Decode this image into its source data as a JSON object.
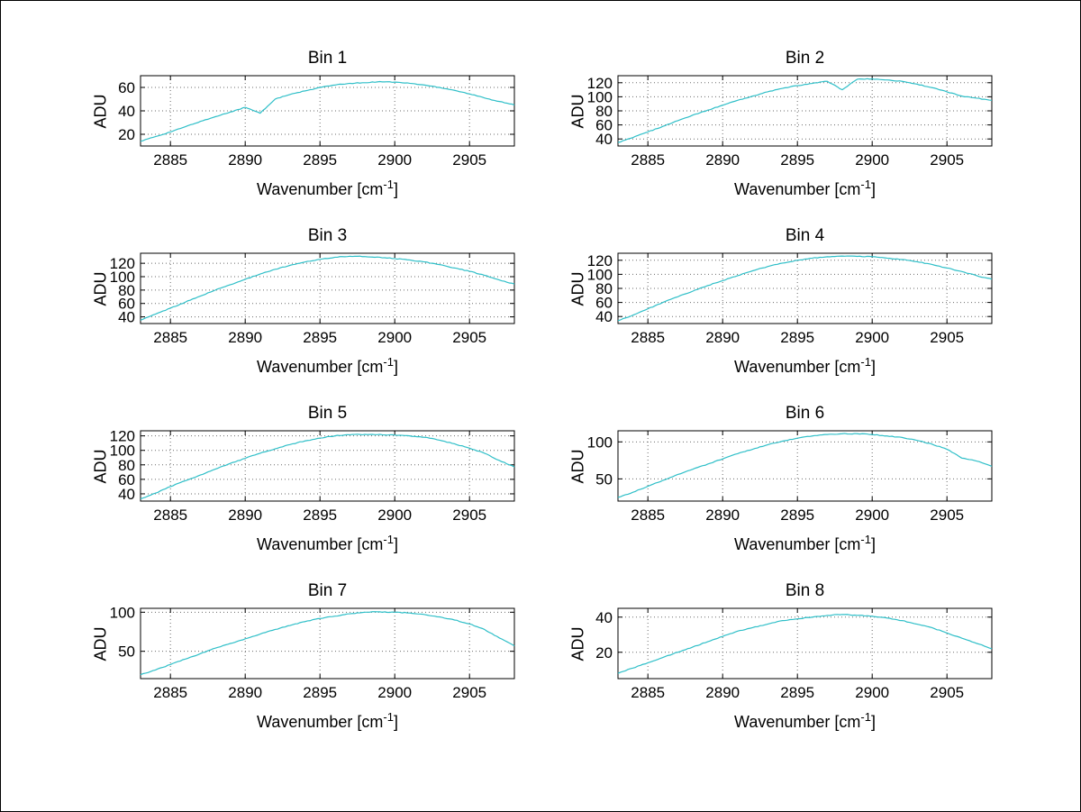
{
  "style": {
    "background": "#ffffff",
    "axis_color": "#000000",
    "grid_color": "#6b6b6b",
    "line_color": "#2fbfc8"
  },
  "labels": {
    "ylabel": "ADU",
    "xlabel_base": "Wavenumber [cm",
    "xlabel_sup": "-1",
    "xlabel_close": "]"
  },
  "chart_data": [
    {
      "type": "line",
      "title": "Bin 1",
      "xlabel": "Wavenumber [cm^-1]",
      "ylabel": "ADU",
      "xlim": [
        2883,
        2908
      ],
      "ylim": [
        10,
        70
      ],
      "xticks": [
        2885,
        2890,
        2895,
        2900,
        2905
      ],
      "yticks": [
        20,
        40,
        60
      ],
      "grid": true,
      "x": [
        2883,
        2884,
        2885,
        2886,
        2887,
        2888,
        2889,
        2890,
        2891,
        2892,
        2893,
        2894,
        2895,
        2896,
        2897,
        2898,
        2899,
        2900,
        2901,
        2902,
        2903,
        2904,
        2905,
        2906,
        2907,
        2908
      ],
      "y": [
        14,
        18,
        22,
        26.5,
        31,
        35,
        39,
        43,
        38,
        50,
        54,
        57,
        60,
        62,
        63.5,
        64,
        65,
        64.5,
        63.5,
        62,
        60,
        57.5,
        54.5,
        51,
        48,
        45
      ]
    },
    {
      "type": "line",
      "title": "Bin 2",
      "xlabel": "Wavenumber [cm^-1]",
      "ylabel": "ADU",
      "xlim": [
        2883,
        2908
      ],
      "ylim": [
        30,
        130
      ],
      "xticks": [
        2885,
        2890,
        2895,
        2900,
        2905
      ],
      "yticks": [
        40,
        60,
        80,
        100,
        120
      ],
      "grid": true,
      "x": [
        2883,
        2884,
        2885,
        2886,
        2887,
        2888,
        2889,
        2890,
        2891,
        2892,
        2893,
        2894,
        2895,
        2896,
        2897,
        2898,
        2899,
        2900,
        2901,
        2902,
        2903,
        2904,
        2905,
        2906,
        2907,
        2908
      ],
      "y": [
        35,
        42,
        50,
        58,
        66,
        74,
        81,
        88,
        95,
        101,
        107,
        112,
        116,
        119,
        122,
        110,
        125,
        125.5,
        124,
        122,
        118,
        113,
        107,
        101,
        98,
        95
      ]
    },
    {
      "type": "line",
      "title": "Bin 3",
      "xlabel": "Wavenumber [cm^-1]",
      "ylabel": "ADU",
      "xlim": [
        2883,
        2908
      ],
      "ylim": [
        30,
        135
      ],
      "xticks": [
        2885,
        2890,
        2895,
        2900,
        2905
      ],
      "yticks": [
        40,
        60,
        80,
        100,
        120
      ],
      "grid": true,
      "x": [
        2883,
        2884,
        2885,
        2886,
        2887,
        2888,
        2889,
        2890,
        2891,
        2892,
        2893,
        2894,
        2895,
        2896,
        2897,
        2898,
        2899,
        2900,
        2901,
        2902,
        2903,
        2904,
        2905,
        2906,
        2907,
        2908
      ],
      "y": [
        35,
        44,
        53,
        62,
        71,
        80,
        88,
        96,
        104,
        111,
        117,
        122,
        126,
        129,
        130.5,
        130,
        129,
        127,
        125,
        122,
        118,
        113,
        108,
        102,
        95,
        89
      ]
    },
    {
      "type": "line",
      "title": "Bin 4",
      "xlabel": "Wavenumber [cm^-1]",
      "ylabel": "ADU",
      "xlim": [
        2883,
        2908
      ],
      "ylim": [
        30,
        130
      ],
      "xticks": [
        2885,
        2890,
        2895,
        2900,
        2905
      ],
      "yticks": [
        40,
        60,
        80,
        100,
        120
      ],
      "grid": true,
      "x": [
        2883,
        2884,
        2885,
        2886,
        2887,
        2888,
        2889,
        2890,
        2891,
        2892,
        2893,
        2894,
        2895,
        2896,
        2897,
        2898,
        2899,
        2900,
        2901,
        2902,
        2903,
        2904,
        2905,
        2906,
        2907,
        2908
      ],
      "y": [
        34,
        42,
        51,
        60,
        68,
        76,
        84,
        91,
        98,
        105,
        111,
        116,
        120,
        123,
        125,
        126,
        125.5,
        125,
        123,
        121,
        118,
        114,
        109,
        104,
        98,
        93
      ]
    },
    {
      "type": "line",
      "title": "Bin 5",
      "xlabel": "Wavenumber [cm^-1]",
      "ylabel": "ADU",
      "xlim": [
        2883,
        2908
      ],
      "ylim": [
        30,
        127
      ],
      "xticks": [
        2885,
        2890,
        2895,
        2900,
        2905
      ],
      "yticks": [
        40,
        60,
        80,
        100,
        120
      ],
      "grid": true,
      "x": [
        2883,
        2884,
        2885,
        2886,
        2887,
        2888,
        2889,
        2890,
        2891,
        2892,
        2893,
        2894,
        2895,
        2896,
        2897,
        2898,
        2899,
        2900,
        2901,
        2902,
        2903,
        2904,
        2905,
        2906,
        2907,
        2908
      ],
      "y": [
        33,
        41,
        50,
        58,
        66,
        74,
        82,
        89,
        96,
        102,
        108,
        113,
        117,
        120,
        121.5,
        122,
        122,
        121,
        120,
        118,
        114,
        109,
        103,
        96,
        86,
        77
      ]
    },
    {
      "type": "line",
      "title": "Bin 6",
      "xlabel": "Wavenumber [cm^-1]",
      "ylabel": "ADU",
      "xlim": [
        2883,
        2908
      ],
      "ylim": [
        20,
        115
      ],
      "xticks": [
        2885,
        2890,
        2895,
        2900,
        2905
      ],
      "yticks": [
        50,
        100
      ],
      "grid": true,
      "x": [
        2883,
        2884,
        2885,
        2886,
        2887,
        2888,
        2889,
        2890,
        2891,
        2892,
        2893,
        2894,
        2895,
        2896,
        2897,
        2898,
        2899,
        2900,
        2901,
        2902,
        2903,
        2904,
        2905,
        2906,
        2907,
        2908
      ],
      "y": [
        25,
        32,
        40,
        48,
        56,
        63,
        70,
        77,
        84,
        90,
        96,
        101,
        105,
        108,
        110,
        111,
        111,
        110,
        108,
        106,
        102,
        97,
        90,
        78,
        74,
        67
      ]
    },
    {
      "type": "line",
      "title": "Bin 7",
      "xlabel": "Wavenumber [cm^-1]",
      "ylabel": "ADU",
      "xlim": [
        2883,
        2908
      ],
      "ylim": [
        15,
        105
      ],
      "xticks": [
        2885,
        2890,
        2895,
        2900,
        2905
      ],
      "yticks": [
        50,
        100
      ],
      "grid": true,
      "x": [
        2883,
        2884,
        2885,
        2886,
        2887,
        2888,
        2889,
        2890,
        2891,
        2892,
        2893,
        2894,
        2895,
        2896,
        2897,
        2898,
        2899,
        2900,
        2901,
        2902,
        2903,
        2904,
        2905,
        2906,
        2907,
        2908
      ],
      "y": [
        20,
        26,
        33,
        40,
        47,
        54,
        60,
        66,
        72,
        78,
        83,
        88,
        92,
        95,
        98,
        100,
        100.5,
        100,
        99,
        97,
        94,
        90,
        85,
        78,
        67,
        57
      ]
    },
    {
      "type": "line",
      "title": "Bin 8",
      "xlabel": "Wavenumber [cm^-1]",
      "ylabel": "ADU",
      "xlim": [
        2883,
        2908
      ],
      "ylim": [
        5,
        45
      ],
      "xticks": [
        2885,
        2890,
        2895,
        2900,
        2905
      ],
      "yticks": [
        20,
        40
      ],
      "grid": true,
      "x": [
        2883,
        2884,
        2885,
        2886,
        2887,
        2888,
        2889,
        2890,
        2891,
        2892,
        2893,
        2894,
        2895,
        2896,
        2897,
        2898,
        2899,
        2900,
        2901,
        2902,
        2903,
        2904,
        2905,
        2906,
        2907,
        2908
      ],
      "y": [
        8,
        11,
        14,
        17,
        20,
        23,
        26,
        29,
        32,
        34,
        36,
        38,
        39,
        40,
        41,
        41.5,
        41,
        40.5,
        39.5,
        38,
        36,
        34,
        31,
        28,
        25,
        22
      ]
    }
  ]
}
